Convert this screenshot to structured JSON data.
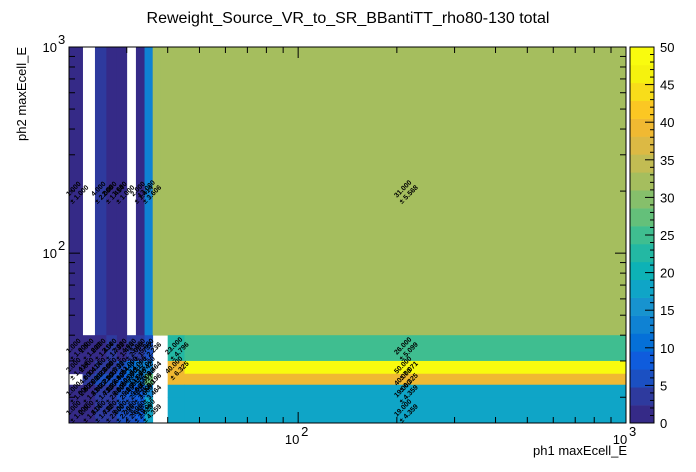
{
  "chart_data": {
    "type": "heatmap",
    "title": "Reweight_Source_VR_to_SR_BBantiTT_rho80-130 total",
    "xlabel": "ph1 maxEcell_E",
    "ylabel": "ph2 maxEcell_E",
    "x_scale": "log",
    "y_scale": "log",
    "xlim": [
      20,
      1000
    ],
    "ylim": [
      15,
      1000
    ],
    "x_ticks": [
      {
        "value": 100,
        "label": "10",
        "exp": "2"
      },
      {
        "value": 1000,
        "label": "10",
        "exp": "3"
      }
    ],
    "y_ticks": [
      {
        "value": 100,
        "label": "10",
        "exp": "2"
      },
      {
        "value": 1000,
        "label": "10",
        "exp": "3"
      }
    ],
    "x_edges": [
      20,
      22,
      24,
      26,
      28,
      30,
      32,
      34,
      36,
      38,
      40,
      45,
      1000
    ],
    "y_edges": [
      15,
      20,
      23,
      26,
      30,
      40,
      1000
    ],
    "z_range": [
      0,
      50
    ],
    "colorbar_ticks": [
      "0",
      "5",
      "10",
      "15",
      "20",
      "25",
      "30",
      "35",
      "40",
      "45",
      "50"
    ],
    "palette": [
      "#352a87",
      "#2e3a9e",
      "#1b50c2",
      "#0f5cdd",
      "#0570d8",
      "#0f82d3",
      "#1793cf",
      "#0fa5c7",
      "#0db2b6",
      "#23b8a3",
      "#3fbe90",
      "#64c07a",
      "#86bf6b",
      "#a5be5e",
      "#c2bc53",
      "#dcb944",
      "#f0b932",
      "#fbc723",
      "#f8dd1a",
      "#f5f20e",
      "#f9fb0e"
    ],
    "cells": [
      {
        "ix": 0,
        "iy": 5,
        "value": 1,
        "error": 1.0
      },
      {
        "ix": 2,
        "iy": 5,
        "value": 4,
        "error": 2.0
      },
      {
        "ix": 3,
        "iy": 5,
        "value": 2,
        "error": 1.414
      },
      {
        "ix": 4,
        "iy": 5,
        "value": 1,
        "error": 1.0
      },
      {
        "ix": 6,
        "iy": 5,
        "value": 2,
        "error": 1.414
      },
      {
        "ix": 7,
        "iy": 5,
        "value": 13,
        "error": 3.606
      },
      {
        "ix": 8,
        "iy": 5,
        "value": 31,
        "error": 5.568
      },
      {
        "ix": 9,
        "iy": 5,
        "value": 31,
        "error": 5.568
      },
      {
        "ix": 10,
        "iy": 5,
        "value": 31,
        "error": 5.568
      },
      {
        "ix": 11,
        "iy": 5,
        "value": 31,
        "error": 5.568
      },
      {
        "ix": 0,
        "iy": 4,
        "value": 1,
        "error": 1.0
      },
      {
        "ix": 1,
        "iy": 4,
        "value": 1,
        "error": 1.0
      },
      {
        "ix": 2,
        "iy": 4,
        "value": 2,
        "error": 1.414
      },
      {
        "ix": 3,
        "iy": 4,
        "value": 3,
        "error": 1.732
      },
      {
        "ix": 4,
        "iy": 4,
        "value": 2,
        "error": 1.414
      },
      {
        "ix": 5,
        "iy": 4,
        "value": 4,
        "error": 2.0
      },
      {
        "ix": 6,
        "iy": 4,
        "value": 3,
        "error": 1.732
      },
      {
        "ix": 7,
        "iy": 4,
        "value": 5,
        "error": 2.236
      },
      {
        "ix": 10,
        "iy": 4,
        "value": 23,
        "error": 4.796
      },
      {
        "ix": 11,
        "iy": 4,
        "value": 26,
        "error": 5.099
      },
      {
        "ix": 0,
        "iy": 3,
        "value": 2,
        "error": 1.414
      },
      {
        "ix": 1,
        "iy": 3,
        "value": 2,
        "error": 1.414
      },
      {
        "ix": 2,
        "iy": 3,
        "value": 4,
        "error": 2.0
      },
      {
        "ix": 3,
        "iy": 3,
        "value": 3,
        "error": 1.732
      },
      {
        "ix": 4,
        "iy": 3,
        "value": 6,
        "error": 2.449
      },
      {
        "ix": 5,
        "iy": 3,
        "value": 11,
        "error": 3.317
      },
      {
        "ix": 6,
        "iy": 3,
        "value": 14,
        "error": 3.742
      },
      {
        "ix": 7,
        "iy": 3,
        "value": 12,
        "error": 3.464
      },
      {
        "ix": 10,
        "iy": 3,
        "value": 40,
        "error": 6.325
      },
      {
        "ix": 11,
        "iy": 3,
        "value": 50,
        "error": 7.071
      },
      {
        "ix": 1,
        "iy": 2,
        "value": 4,
        "error": 2.0
      },
      {
        "ix": 2,
        "iy": 2,
        "value": 5,
        "error": 2.236
      },
      {
        "ix": 3,
        "iy": 2,
        "value": 7,
        "error": 2.646
      },
      {
        "ix": 4,
        "iy": 2,
        "value": 8,
        "error": 2.828
      },
      {
        "ix": 5,
        "iy": 2,
        "value": 10,
        "error": 3.162
      },
      {
        "ix": 6,
        "iy": 2,
        "value": 11,
        "error": 3.317
      },
      {
        "ix": 7,
        "iy": 2,
        "value": 27,
        "error": 5.196
      },
      {
        "ix": 10,
        "iy": 2,
        "value": 40,
        "error": 6.325
      },
      {
        "ix": 11,
        "iy": 2,
        "value": 40,
        "error": 6.325
      },
      {
        "ix": 0,
        "iy": 1,
        "value": 1,
        "error": 1.0
      },
      {
        "ix": 1,
        "iy": 1,
        "value": 2,
        "error": 1.414
      },
      {
        "ix": 2,
        "iy": 1,
        "value": 3,
        "error": 1.732
      },
      {
        "ix": 3,
        "iy": 1,
        "value": 4,
        "error": 2.0
      },
      {
        "ix": 4,
        "iy": 1,
        "value": 6,
        "error": 2.449
      },
      {
        "ix": 5,
        "iy": 1,
        "value": 8,
        "error": 2.828
      },
      {
        "ix": 6,
        "iy": 1,
        "value": 9,
        "error": 3.0
      },
      {
        "ix": 7,
        "iy": 1,
        "value": 12,
        "error": 3.464
      },
      {
        "ix": 10,
        "iy": 1,
        "value": 19,
        "error": 4.359
      },
      {
        "ix": 11,
        "iy": 1,
        "value": 19,
        "error": 4.359
      },
      {
        "ix": 0,
        "iy": 0,
        "value": 1,
        "error": 1.0
      },
      {
        "ix": 1,
        "iy": 0,
        "value": 2,
        "error": 1.414
      },
      {
        "ix": 2,
        "iy": 0,
        "value": 3,
        "error": 1.732
      },
      {
        "ix": 3,
        "iy": 0,
        "value": 4,
        "error": 2.0
      },
      {
        "ix": 4,
        "iy": 0,
        "value": 5,
        "error": 2.236
      },
      {
        "ix": 5,
        "iy": 0,
        "value": 7,
        "error": 2.646
      },
      {
        "ix": 6,
        "iy": 0,
        "value": 8,
        "error": 2.828
      },
      {
        "ix": 7,
        "iy": 0,
        "value": 19,
        "error": 4.359
      },
      {
        "ix": 10,
        "iy": 0,
        "value": 19,
        "error": 4.359
      },
      {
        "ix": 11,
        "iy": 0,
        "value": 19,
        "error": 4.359
      }
    ],
    "labeled_cells": [
      {
        "ix": 0,
        "iy": 5
      },
      {
        "ix": 2,
        "iy": 5
      },
      {
        "ix": 3,
        "iy": 5
      },
      {
        "ix": 4,
        "iy": 5
      },
      {
        "ix": 6,
        "iy": 5
      },
      {
        "ix": 7,
        "iy": 5
      },
      {
        "ix": 11,
        "iy": 5
      },
      {
        "ix": 0,
        "iy": 4
      },
      {
        "ix": 1,
        "iy": 4
      },
      {
        "ix": 2,
        "iy": 4
      },
      {
        "ix": 3,
        "iy": 4
      },
      {
        "ix": 4,
        "iy": 4
      },
      {
        "ix": 5,
        "iy": 4
      },
      {
        "ix": 6,
        "iy": 4
      },
      {
        "ix": 7,
        "iy": 4
      },
      {
        "ix": 10,
        "iy": 4
      },
      {
        "ix": 11,
        "iy": 4
      },
      {
        "ix": 0,
        "iy": 3
      },
      {
        "ix": 1,
        "iy": 3
      },
      {
        "ix": 2,
        "iy": 3
      },
      {
        "ix": 3,
        "iy": 3
      },
      {
        "ix": 4,
        "iy": 3
      },
      {
        "ix": 5,
        "iy": 3
      },
      {
        "ix": 6,
        "iy": 3
      },
      {
        "ix": 7,
        "iy": 3
      },
      {
        "ix": 10,
        "iy": 3
      },
      {
        "ix": 11,
        "iy": 3
      },
      {
        "ix": 1,
        "iy": 2
      },
      {
        "ix": 2,
        "iy": 2
      },
      {
        "ix": 3,
        "iy": 2
      },
      {
        "ix": 4,
        "iy": 2
      },
      {
        "ix": 5,
        "iy": 2
      },
      {
        "ix": 6,
        "iy": 2
      },
      {
        "ix": 7,
        "iy": 2
      },
      {
        "ix": 11,
        "iy": 2
      },
      {
        "ix": 0,
        "iy": 1
      },
      {
        "ix": 1,
        "iy": 1
      },
      {
        "ix": 2,
        "iy": 1
      },
      {
        "ix": 3,
        "iy": 1
      },
      {
        "ix": 4,
        "iy": 1
      },
      {
        "ix": 5,
        "iy": 1
      },
      {
        "ix": 6,
        "iy": 1
      },
      {
        "ix": 7,
        "iy": 1
      },
      {
        "ix": 11,
        "iy": 1
      },
      {
        "ix": 0,
        "iy": 0
      },
      {
        "ix": 1,
        "iy": 0
      },
      {
        "ix": 2,
        "iy": 0
      },
      {
        "ix": 3,
        "iy": 0
      },
      {
        "ix": 4,
        "iy": 0
      },
      {
        "ix": 5,
        "iy": 0
      },
      {
        "ix": 6,
        "iy": 0
      },
      {
        "ix": 7,
        "iy": 0
      },
      {
        "ix": 11,
        "iy": 0
      }
    ],
    "grid": false,
    "legend": "colorbar-right"
  }
}
